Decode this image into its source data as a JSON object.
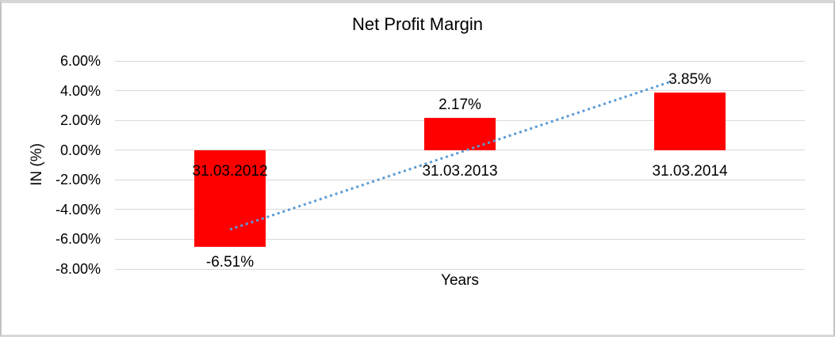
{
  "chart_data": {
    "type": "bar",
    "title": "Net Profit Margin",
    "xlabel": "Years",
    "ylabel": "IN (%)",
    "categories": [
      "31.03.2012",
      "31.03.2013",
      "31.03.2014"
    ],
    "values": [
      -6.51,
      2.17,
      3.85
    ],
    "data_labels": [
      "-6.51%",
      "2.17%",
      "3.85%"
    ],
    "ylim": [
      -8,
      6
    ],
    "ytick_step": 2,
    "yticks": [
      "6.00%",
      "4.00%",
      "2.00%",
      "0.00%",
      "-2.00%",
      "-4.00%",
      "-6.00%",
      "-8.00%"
    ],
    "grid": true,
    "legend": false,
    "trendline": {
      "type": "linear",
      "style": "dotted"
    },
    "colors": {
      "bar": "#FF0000",
      "trendline": "#5B9BD5",
      "gridline": "#D9D9D9",
      "text": "#000000"
    }
  }
}
